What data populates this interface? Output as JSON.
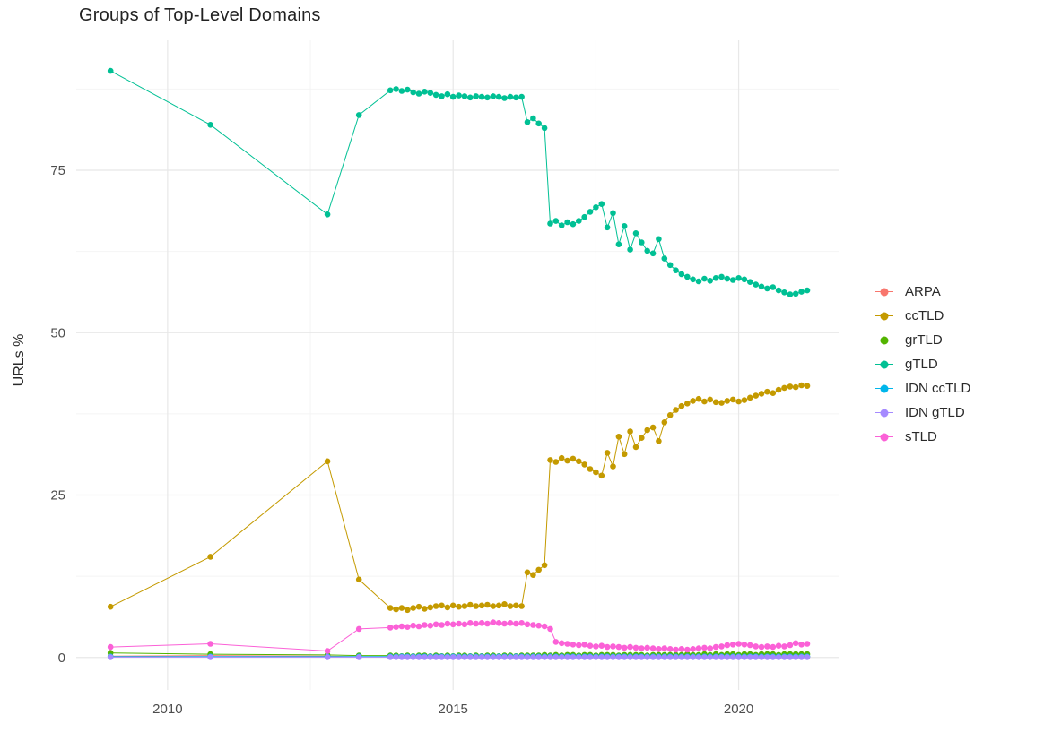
{
  "chart_data": {
    "type": "scatter-line",
    "title": "Groups of Top-Level Domains",
    "xlabel": "",
    "ylabel": "URLs %",
    "x_ticks": [
      2010,
      2015,
      2020
    ],
    "x_tick_labels": [
      "2010",
      "2015",
      "2020"
    ],
    "y_ticks": [
      0,
      25,
      50,
      75
    ],
    "y_tick_labels": [
      "0",
      "25",
      "50",
      "75"
    ],
    "x_minor_ticks": [
      2012.5,
      2017.5
    ],
    "y_minor_ticks": [
      12.5,
      37.5,
      62.5,
      87.5
    ],
    "xlim": [
      2008.4,
      2021.75
    ],
    "ylim": [
      -5,
      95
    ],
    "grid": true,
    "grid_color": "#e8e8e8",
    "minor_grid_color": "#f4f4f4",
    "axis_text_color": "#4d4d4d",
    "background": "#ffffff",
    "legend_position": "right",
    "x": [
      2009,
      2010.75,
      2012.8,
      2013.35,
      2013.9,
      2014,
      2014.1,
      2014.2,
      2014.3,
      2014.4,
      2014.5,
      2014.6,
      2014.7,
      2014.8,
      2014.9,
      2015,
      2015.1,
      2015.2,
      2015.3,
      2015.4,
      2015.5,
      2015.6,
      2015.7,
      2015.8,
      2015.9,
      2016,
      2016.1,
      2016.2,
      2016.3,
      2016.4,
      2016.5,
      2016.6,
      2016.7,
      2016.8,
      2016.9,
      2017,
      2017.1,
      2017.2,
      2017.3,
      2017.4,
      2017.5,
      2017.6,
      2017.7,
      2017.8,
      2017.9,
      2018,
      2018.1,
      2018.2,
      2018.3,
      2018.4,
      2018.5,
      2018.6,
      2018.7,
      2018.8,
      2018.9,
      2019,
      2019.1,
      2019.2,
      2019.3,
      2019.4,
      2019.5,
      2019.6,
      2019.7,
      2019.8,
      2019.9,
      2020,
      2020.1,
      2020.2,
      2020.3,
      2020.4,
      2020.5,
      2020.6,
      2020.7,
      2020.8,
      2020.9,
      2021,
      2021.1,
      2021.2
    ],
    "series": [
      {
        "name": "ARPA",
        "color": "#F8766D",
        "values": [
          0.2,
          0.3,
          0.2,
          0.1,
          0.1,
          0.1,
          0.1,
          0.1,
          0.1,
          0.1,
          0.1,
          0.1,
          0.1,
          0.1,
          0.1,
          0.1,
          0.1,
          0.1,
          0.1,
          0.1,
          0.1,
          0.1,
          0.1,
          0.1,
          0.1,
          0.1,
          0.1,
          0.1,
          0.1,
          0.1,
          0.1,
          0.1,
          0.1,
          0.1,
          0.1,
          0.1,
          0.1,
          0.1,
          0.1,
          0.1,
          0.1,
          0.1,
          0.1,
          0.1,
          0.1,
          0.1,
          0.1,
          0.1,
          0.1,
          0.1,
          0.1,
          0.1,
          0.1,
          0.1,
          0.1,
          0.1,
          0.1,
          0.1,
          0.1,
          0.1,
          0.1,
          0.1,
          0.1,
          0.1,
          0.1,
          0.1,
          0.1,
          0.1,
          0.1,
          0.1,
          0.1,
          0.1,
          0.1,
          0.1,
          0.1,
          0.1,
          0.1,
          0.1
        ]
      },
      {
        "name": "ccTLD",
        "color": "#C49A00",
        "values": [
          7.8,
          15.5,
          30.2,
          12.0,
          7.6,
          7.4,
          7.6,
          7.3,
          7.6,
          7.8,
          7.5,
          7.7,
          7.9,
          8.0,
          7.7,
          8.0,
          7.8,
          7.9,
          8.1,
          7.9,
          8.0,
          8.1,
          7.9,
          8.0,
          8.2,
          7.9,
          8.0,
          7.9,
          13.1,
          12.7,
          13.5,
          14.2,
          30.4,
          30.1,
          30.7,
          30.3,
          30.6,
          30.2,
          29.7,
          29.0,
          28.5,
          28.0,
          31.5,
          29.4,
          34.0,
          31.3,
          34.8,
          32.4,
          33.8,
          35.0,
          35.4,
          33.3,
          36.2,
          37.3,
          38.1,
          38.7,
          39.1,
          39.5,
          39.8,
          39.4,
          39.7,
          39.3,
          39.2,
          39.5,
          39.7,
          39.4,
          39.6,
          40.0,
          40.3,
          40.6,
          40.9,
          40.7,
          41.2,
          41.5,
          41.7,
          41.6,
          41.9,
          41.8
        ]
      },
      {
        "name": "grTLD",
        "color": "#53B400",
        "values": [
          0.7,
          0.5,
          0.4,
          0.3,
          0.3,
          0.3,
          0.2,
          0.3,
          0.2,
          0.3,
          0.3,
          0.2,
          0.3,
          0.2,
          0.3,
          0.2,
          0.3,
          0.3,
          0.2,
          0.3,
          0.2,
          0.3,
          0.3,
          0.2,
          0.3,
          0.3,
          0.2,
          0.3,
          0.3,
          0.3,
          0.3,
          0.4,
          0.3,
          0.4,
          0.3,
          0.4,
          0.4,
          0.3,
          0.4,
          0.4,
          0.3,
          0.4,
          0.4,
          0.4,
          0.3,
          0.4,
          0.4,
          0.4,
          0.4,
          0.3,
          0.4,
          0.4,
          0.4,
          0.4,
          0.4,
          0.4,
          0.5,
          0.4,
          0.4,
          0.5,
          0.4,
          0.5,
          0.4,
          0.5,
          0.5,
          0.4,
          0.5,
          0.5,
          0.4,
          0.5,
          0.5,
          0.5,
          0.4,
          0.5,
          0.5,
          0.5,
          0.5,
          0.5
        ]
      },
      {
        "name": "gTLD",
        "color": "#00C094",
        "values": [
          90.3,
          82.0,
          68.2,
          83.5,
          87.3,
          87.5,
          87.2,
          87.4,
          87.0,
          86.8,
          87.1,
          86.9,
          86.6,
          86.4,
          86.7,
          86.3,
          86.5,
          86.4,
          86.2,
          86.4,
          86.3,
          86.2,
          86.4,
          86.3,
          86.1,
          86.3,
          86.2,
          86.3,
          82.4,
          83.0,
          82.2,
          81.5,
          66.8,
          67.2,
          66.5,
          67.0,
          66.7,
          67.2,
          67.8,
          68.6,
          69.3,
          69.8,
          66.2,
          68.4,
          63.6,
          66.4,
          62.8,
          65.3,
          63.9,
          62.6,
          62.2,
          64.4,
          61.4,
          60.4,
          59.6,
          59.0,
          58.6,
          58.2,
          57.9,
          58.3,
          58.0,
          58.4,
          58.6,
          58.3,
          58.1,
          58.4,
          58.2,
          57.8,
          57.4,
          57.1,
          56.8,
          57.0,
          56.5,
          56.2,
          55.9,
          56.0,
          56.3,
          56.5
        ]
      },
      {
        "name": "IDN ccTLD",
        "color": "#00B6EB",
        "values": 0.15
      },
      {
        "name": "IDN gTLD",
        "color": "#A58AFF",
        "values": 0.05
      },
      {
        "name": "sTLD",
        "color": "#FB61D7",
        "values": [
          1.6,
          2.1,
          1.0,
          4.4,
          4.6,
          4.7,
          4.8,
          4.7,
          4.9,
          4.8,
          5.0,
          4.9,
          5.1,
          5.0,
          5.2,
          5.1,
          5.2,
          5.1,
          5.3,
          5.2,
          5.3,
          5.2,
          5.4,
          5.3,
          5.2,
          5.3,
          5.2,
          5.3,
          5.1,
          5.0,
          4.9,
          4.8,
          4.4,
          2.4,
          2.2,
          2.1,
          2.0,
          1.9,
          2.0,
          1.8,
          1.7,
          1.8,
          1.6,
          1.7,
          1.6,
          1.5,
          1.6,
          1.5,
          1.4,
          1.5,
          1.4,
          1.3,
          1.4,
          1.3,
          1.2,
          1.3,
          1.2,
          1.3,
          1.4,
          1.5,
          1.4,
          1.6,
          1.7,
          1.9,
          2.0,
          2.1,
          2.0,
          1.9,
          1.7,
          1.6,
          1.7,
          1.6,
          1.8,
          1.7,
          1.9,
          2.2,
          2.0,
          2.1
        ]
      }
    ]
  }
}
